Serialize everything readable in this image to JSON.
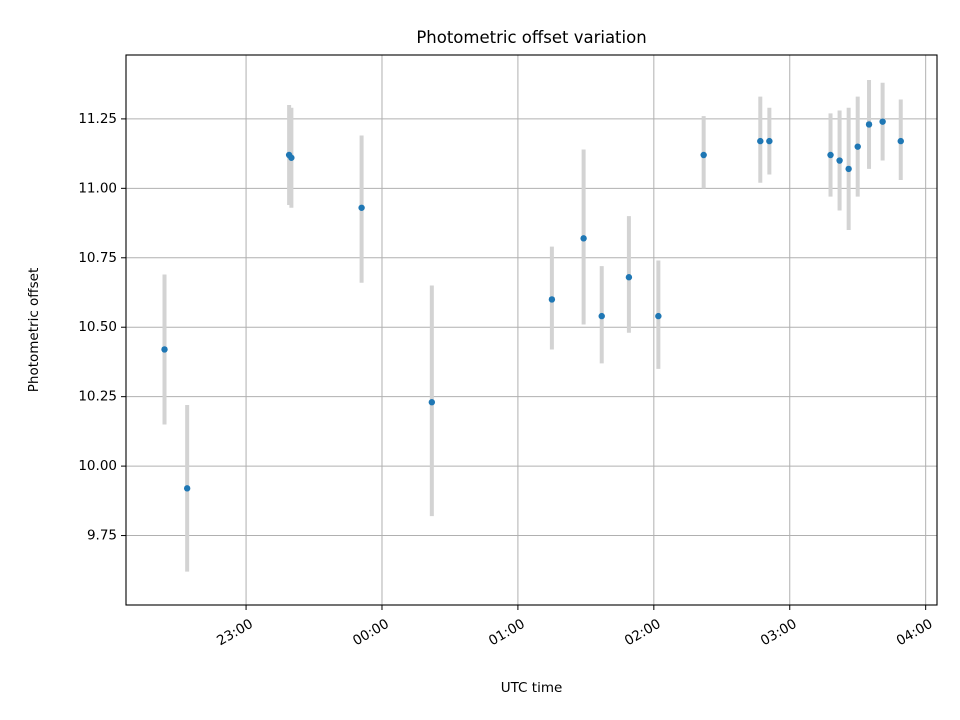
{
  "chart_data": {
    "type": "scatter",
    "title": "Photometric offset variation",
    "xlabel": "UTC time",
    "ylabel": "Photometric offset",
    "grid": true,
    "xlim": [
      "22:07",
      "04:05"
    ],
    "ylim": [
      9.5,
      11.48
    ],
    "xticks": [
      "23:00",
      "00:00",
      "01:00",
      "02:00",
      "03:00",
      "04:00"
    ],
    "yticks": [
      "9.75",
      "10.00",
      "10.25",
      "10.50",
      "10.75",
      "11.00",
      "11.25"
    ],
    "colors": {
      "point": "#1f77b4",
      "errorbar": "#d3d3d3",
      "grid": "#b0b0b0"
    },
    "points": [
      {
        "x": "22:24",
        "y": 10.42,
        "ylo": 10.15,
        "yhi": 10.69
      },
      {
        "x": "22:34",
        "y": 9.92,
        "ylo": 9.62,
        "yhi": 10.22
      },
      {
        "x": "23:19",
        "y": 11.12,
        "ylo": 10.94,
        "yhi": 11.3
      },
      {
        "x": "23:20",
        "y": 11.11,
        "ylo": 10.93,
        "yhi": 11.29
      },
      {
        "x": "23:51",
        "y": 10.93,
        "ylo": 10.66,
        "yhi": 11.19
      },
      {
        "x": "00:22",
        "y": 10.23,
        "ylo": 9.82,
        "yhi": 10.65
      },
      {
        "x": "01:15",
        "y": 10.6,
        "ylo": 10.42,
        "yhi": 10.79
      },
      {
        "x": "01:29",
        "y": 10.82,
        "ylo": 10.51,
        "yhi": 11.14
      },
      {
        "x": "01:37",
        "y": 10.54,
        "ylo": 10.37,
        "yhi": 10.72
      },
      {
        "x": "01:49",
        "y": 10.68,
        "ylo": 10.48,
        "yhi": 10.9
      },
      {
        "x": "02:02",
        "y": 10.54,
        "ylo": 10.35,
        "yhi": 10.74
      },
      {
        "x": "02:22",
        "y": 11.12,
        "ylo": 11.0,
        "yhi": 11.26
      },
      {
        "x": "02:47",
        "y": 11.17,
        "ylo": 11.02,
        "yhi": 11.33
      },
      {
        "x": "02:51",
        "y": 11.17,
        "ylo": 11.05,
        "yhi": 11.29
      },
      {
        "x": "03:18",
        "y": 11.12,
        "ylo": 10.97,
        "yhi": 11.27
      },
      {
        "x": "03:22",
        "y": 11.1,
        "ylo": 10.92,
        "yhi": 11.28
      },
      {
        "x": "03:26",
        "y": 11.07,
        "ylo": 10.85,
        "yhi": 11.29
      },
      {
        "x": "03:30",
        "y": 11.15,
        "ylo": 10.97,
        "yhi": 11.33
      },
      {
        "x": "03:35",
        "y": 11.23,
        "ylo": 11.07,
        "yhi": 11.39
      },
      {
        "x": "03:41",
        "y": 11.24,
        "ylo": 11.1,
        "yhi": 11.38
      },
      {
        "x": "03:49",
        "y": 11.17,
        "ylo": 11.03,
        "yhi": 11.32
      }
    ]
  }
}
